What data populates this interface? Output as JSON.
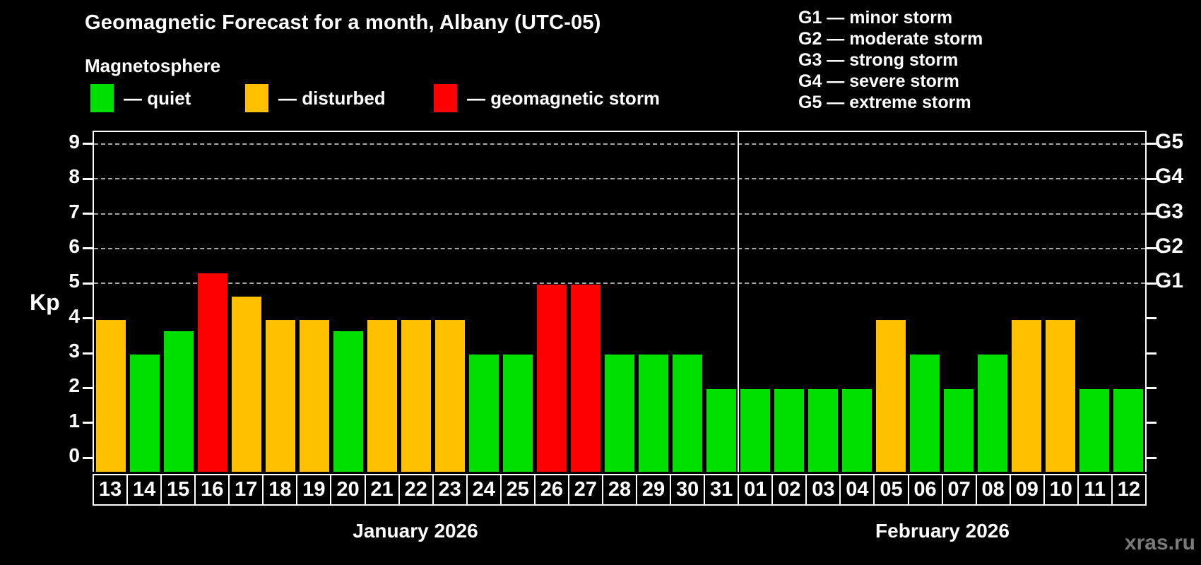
{
  "title": "Geomagnetic Forecast for a month, Albany (UTC-05)",
  "subtitle": "Magnetosphere",
  "legend": {
    "items": [
      {
        "key": "quiet",
        "label": "— quiet",
        "color": "#00e000"
      },
      {
        "key": "disturbed",
        "label": "— disturbed",
        "color": "#ffc000"
      },
      {
        "key": "storm",
        "label": "— geomagnetic storm",
        "color": "#ff0000"
      }
    ]
  },
  "storm_scale_legend": [
    {
      "code": "G1",
      "label": "minor storm"
    },
    {
      "code": "G2",
      "label": "moderate storm"
    },
    {
      "code": "G3",
      "label": "strong storm"
    },
    {
      "code": "G4",
      "label": "severe storm"
    },
    {
      "code": "G5",
      "label": "extreme storm"
    }
  ],
  "watermark": "xras.ru",
  "chart_data": {
    "type": "bar",
    "ylabel": "Kp",
    "ylim": [
      -0.36,
      9.34
    ],
    "y_ticks": [
      0,
      1,
      2,
      3,
      4,
      5,
      6,
      7,
      8,
      9
    ],
    "gridlines_kp": [
      5,
      6,
      7,
      8,
      9
    ],
    "right_axis_labels": [
      {
        "kp": 5,
        "label": "G1"
      },
      {
        "kp": 6,
        "label": "G2"
      },
      {
        "kp": 7,
        "label": "G3"
      },
      {
        "kp": 8,
        "label": "G4"
      },
      {
        "kp": 9,
        "label": "G5"
      }
    ],
    "months": [
      {
        "label": "January 2026",
        "days": 19
      },
      {
        "label": "February 2026",
        "days": 12
      }
    ],
    "categories": [
      "13",
      "14",
      "15",
      "16",
      "17",
      "18",
      "19",
      "20",
      "21",
      "22",
      "23",
      "24",
      "25",
      "26",
      "27",
      "28",
      "29",
      "30",
      "31",
      "01",
      "02",
      "03",
      "04",
      "05",
      "06",
      "07",
      "08",
      "09",
      "10",
      "11",
      "12"
    ],
    "values": [
      4,
      3,
      3.67,
      5.33,
      4.67,
      4,
      4,
      3.67,
      4,
      4,
      4,
      3,
      3,
      5,
      5,
      3,
      3,
      3,
      2,
      2,
      2,
      2,
      2,
      4,
      3,
      2,
      3,
      4,
      4,
      2,
      2
    ],
    "statuses": [
      "disturbed",
      "quiet",
      "quiet",
      "storm",
      "disturbed",
      "disturbed",
      "disturbed",
      "quiet",
      "disturbed",
      "disturbed",
      "disturbed",
      "quiet",
      "quiet",
      "storm",
      "storm",
      "quiet",
      "quiet",
      "quiet",
      "quiet",
      "quiet",
      "quiet",
      "quiet",
      "quiet",
      "disturbed",
      "quiet",
      "quiet",
      "quiet",
      "disturbed",
      "disturbed",
      "quiet",
      "quiet"
    ],
    "colors": {
      "quiet": "#00e000",
      "disturbed": "#ffc000",
      "storm": "#ff0000"
    },
    "legend_position": "top-left",
    "grid": "dashed horizontal at storm levels only"
  }
}
